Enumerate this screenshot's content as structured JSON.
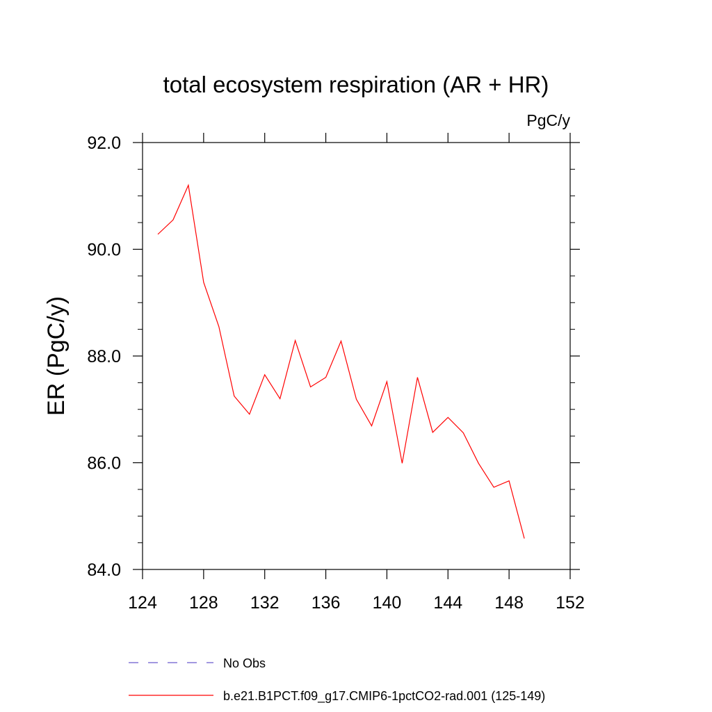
{
  "chart_data": {
    "type": "line",
    "title": "total ecosystem respiration (AR + HR)",
    "units": "PgC/y",
    "ylabel": "ER  (PgC/y)",
    "xlabel": "",
    "xlim": [
      124,
      152
    ],
    "ylim": [
      84.0,
      92.0
    ],
    "xticks": [
      124,
      128,
      132,
      136,
      140,
      144,
      148,
      152
    ],
    "yticks": [
      "84.0",
      "86.0",
      "88.0",
      "90.0",
      "92.0"
    ],
    "grid": false,
    "legend_position": "bottom",
    "series": [
      {
        "name": "b.e21.B1PCT.f09_g17.CMIP6-1pctCO2-rad.001 (125-149)",
        "color": "#ff0000",
        "style": "solid",
        "x": [
          125,
          126,
          127,
          128,
          129,
          130,
          131,
          132,
          133,
          134,
          135,
          136,
          137,
          138,
          139,
          140,
          141,
          142,
          143,
          144,
          145,
          146,
          147,
          148,
          149
        ],
        "y": [
          90.28,
          90.55,
          91.2,
          89.38,
          88.55,
          87.25,
          86.91,
          87.65,
          87.2,
          88.29,
          87.42,
          87.6,
          88.28,
          87.19,
          86.69,
          87.52,
          85.99,
          87.6,
          86.57,
          86.85,
          86.56,
          85.99,
          85.54,
          85.66,
          84.58
        ]
      },
      {
        "name": "No Obs",
        "color": "#6a5acd",
        "style": "dashed",
        "x": [],
        "y": []
      }
    ]
  }
}
